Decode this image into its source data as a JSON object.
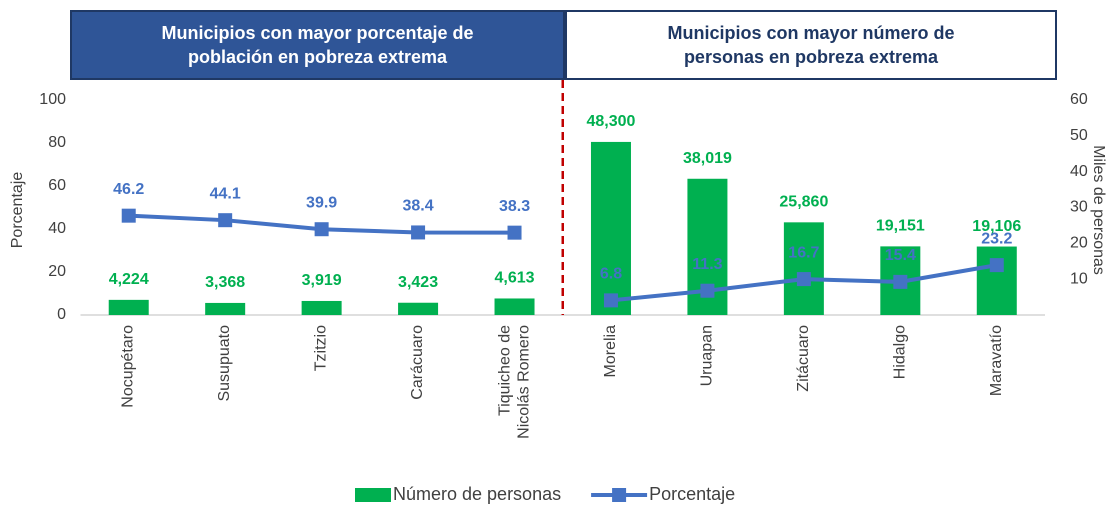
{
  "chart_data": {
    "type": "bar-line",
    "panels": [
      {
        "title": "Municipios con mayor porcentaje de población en pobreza extrema",
        "categories": [
          "Nocupétaro",
          "Susupuato",
          "Tzitzio",
          "Carácuaro",
          "Tiquicheo de\nNicolás Romero"
        ]
      },
      {
        "title": "Municipios con mayor número de personas en pobreza extrema",
        "categories": [
          "Morelia",
          "Uruapan",
          "Zitácuaro",
          "Hidalgo",
          "Maravatío"
        ]
      }
    ],
    "series": [
      {
        "name": "Número de personas",
        "type": "bar",
        "axis": "y2",
        "color": "#00b050",
        "values": [
          4.224,
          3.368,
          3.919,
          3.423,
          4.613,
          48.3,
          38.019,
          25.86,
          19.151,
          19.106
        ],
        "value_labels": [
          "4,224",
          "3,368",
          "3,919",
          "3,423",
          "4,613",
          "48,300",
          "38,019",
          "25,860",
          "19,151",
          "19,106"
        ]
      },
      {
        "name": "Porcentaje",
        "type": "line",
        "color": "#4472c4",
        "values": [
          46.2,
          44.1,
          39.9,
          38.4,
          38.3,
          6.8,
          11.3,
          16.7,
          15.4,
          23.2
        ]
      }
    ],
    "ylabel": "Porcentaje",
    "y2label": "Miles de personas",
    "ylim": [
      0,
      100
    ],
    "yticks": [
      0,
      20,
      40,
      60,
      80,
      100
    ],
    "y2lim": [
      0,
      60
    ],
    "y2ticks": [
      10,
      20,
      30,
      40,
      50,
      60
    ],
    "legend": "bottom"
  }
}
